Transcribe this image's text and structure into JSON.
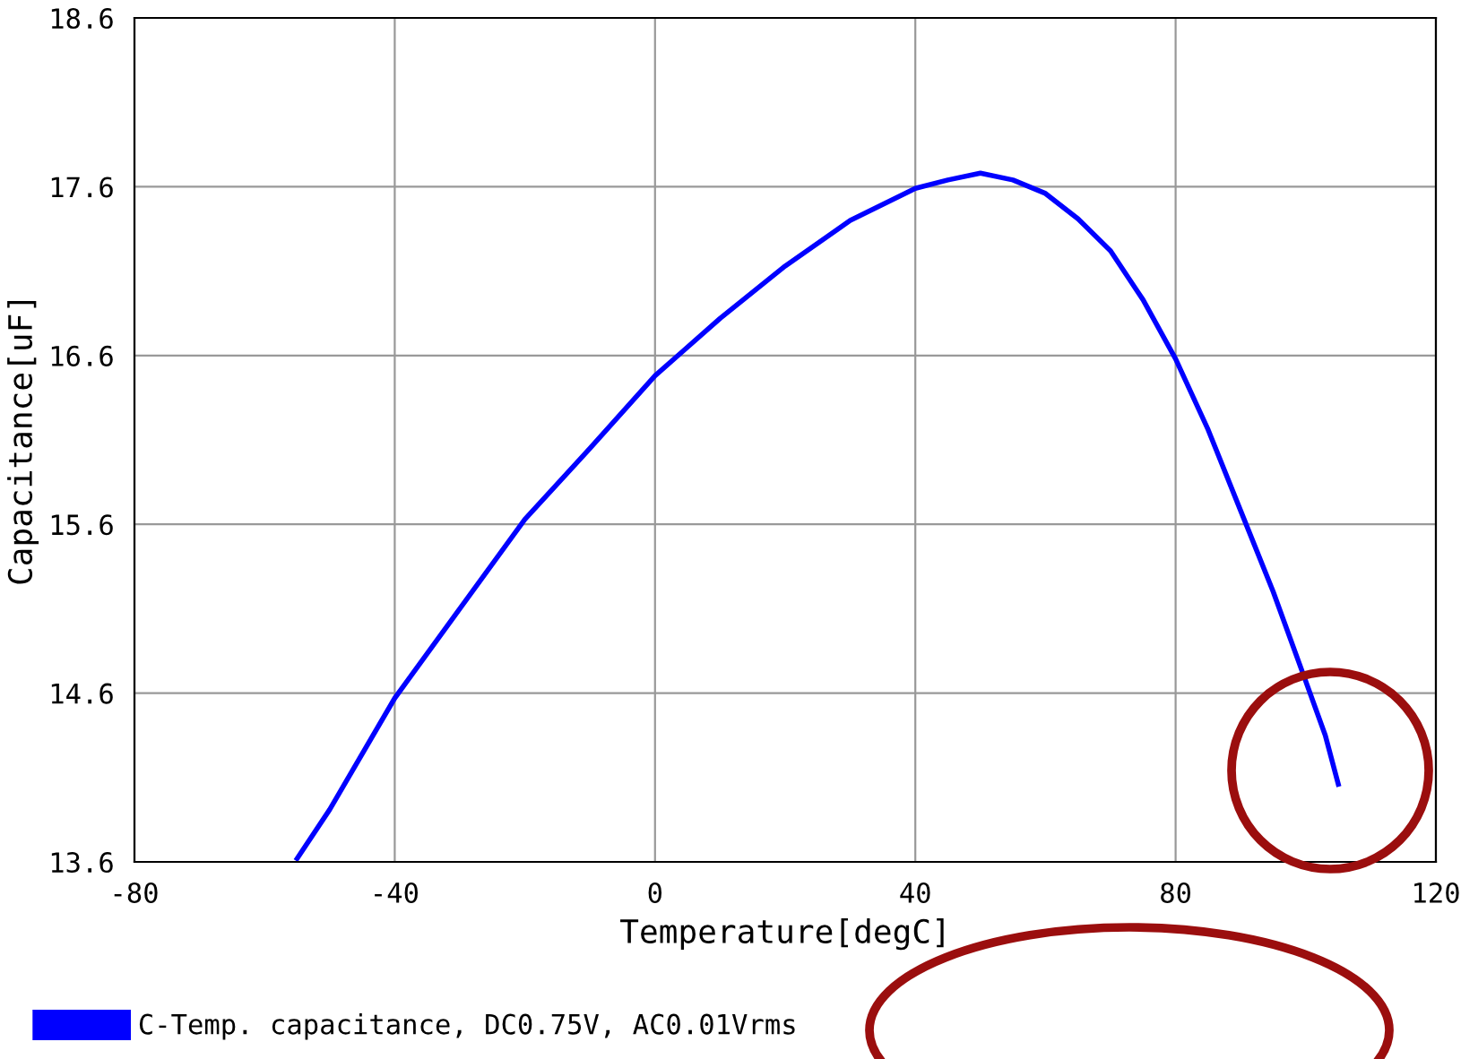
{
  "chart_data": {
    "type": "line",
    "xlabel": "Temperature[degC]",
    "ylabel": "Capacitance[uF]",
    "x": [
      -55,
      -50,
      -40,
      -30,
      -20,
      -10,
      0,
      10,
      20,
      30,
      40,
      45,
      50,
      55,
      60,
      65,
      70,
      75,
      80,
      85,
      90,
      95,
      100,
      103,
      105
    ],
    "series": [
      {
        "name": "C-Temp. capacitance, DC0.75V, AC0.01Vrms",
        "color": "#0000ff",
        "values": [
          13.62,
          13.91,
          14.57,
          15.1,
          15.63,
          16.05,
          16.48,
          16.82,
          17.13,
          17.4,
          17.59,
          17.64,
          17.68,
          17.64,
          17.56,
          17.41,
          17.22,
          16.93,
          16.58,
          16.16,
          15.68,
          15.2,
          14.67,
          14.35,
          14.06
        ]
      }
    ],
    "xlim": [
      -80,
      120
    ],
    "xticks": [
      -80,
      -40,
      0,
      40,
      80,
      120
    ],
    "ylim": [
      13.6,
      18.6
    ],
    "yticks": [
      13.6,
      14.6,
      15.6,
      16.6,
      17.6,
      18.6
    ],
    "grid": true,
    "legend": "bottom",
    "marker": "none",
    "line_style": "solid"
  }
}
